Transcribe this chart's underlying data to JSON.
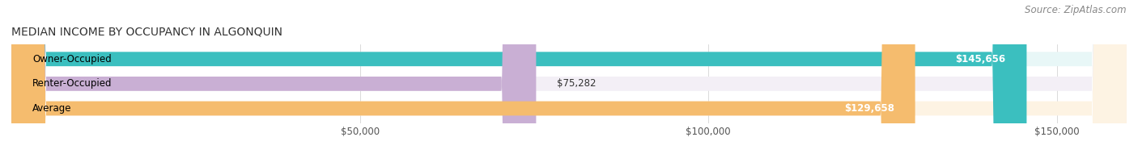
{
  "title": "MEDIAN INCOME BY OCCUPANCY IN ALGONQUIN",
  "source": "Source: ZipAtlas.com",
  "categories": [
    "Owner-Occupied",
    "Renter-Occupied",
    "Average"
  ],
  "values": [
    145656,
    75282,
    129658
  ],
  "bar_colors": [
    "#3bbfbf",
    "#c9afd4",
    "#f5bc6e"
  ],
  "bar_bg_colors": [
    "#e8f7f7",
    "#f3eff6",
    "#fdf3e3"
  ],
  "value_labels": [
    "$145,656",
    "$75,282",
    "$129,658"
  ],
  "value_inside": [
    true,
    false,
    true
  ],
  "xlim": [
    0,
    160000
  ],
  "xticks": [
    0,
    50000,
    100000,
    150000
  ],
  "xticklabels": [
    "",
    "$50,000",
    "$100,000",
    "$150,000"
  ],
  "title_fontsize": 10,
  "source_fontsize": 8.5,
  "label_fontsize": 8.5,
  "value_fontsize": 8.5,
  "background_color": "#ffffff",
  "bar_height": 0.58,
  "figsize": [
    14.06,
    1.96
  ],
  "dpi": 100
}
